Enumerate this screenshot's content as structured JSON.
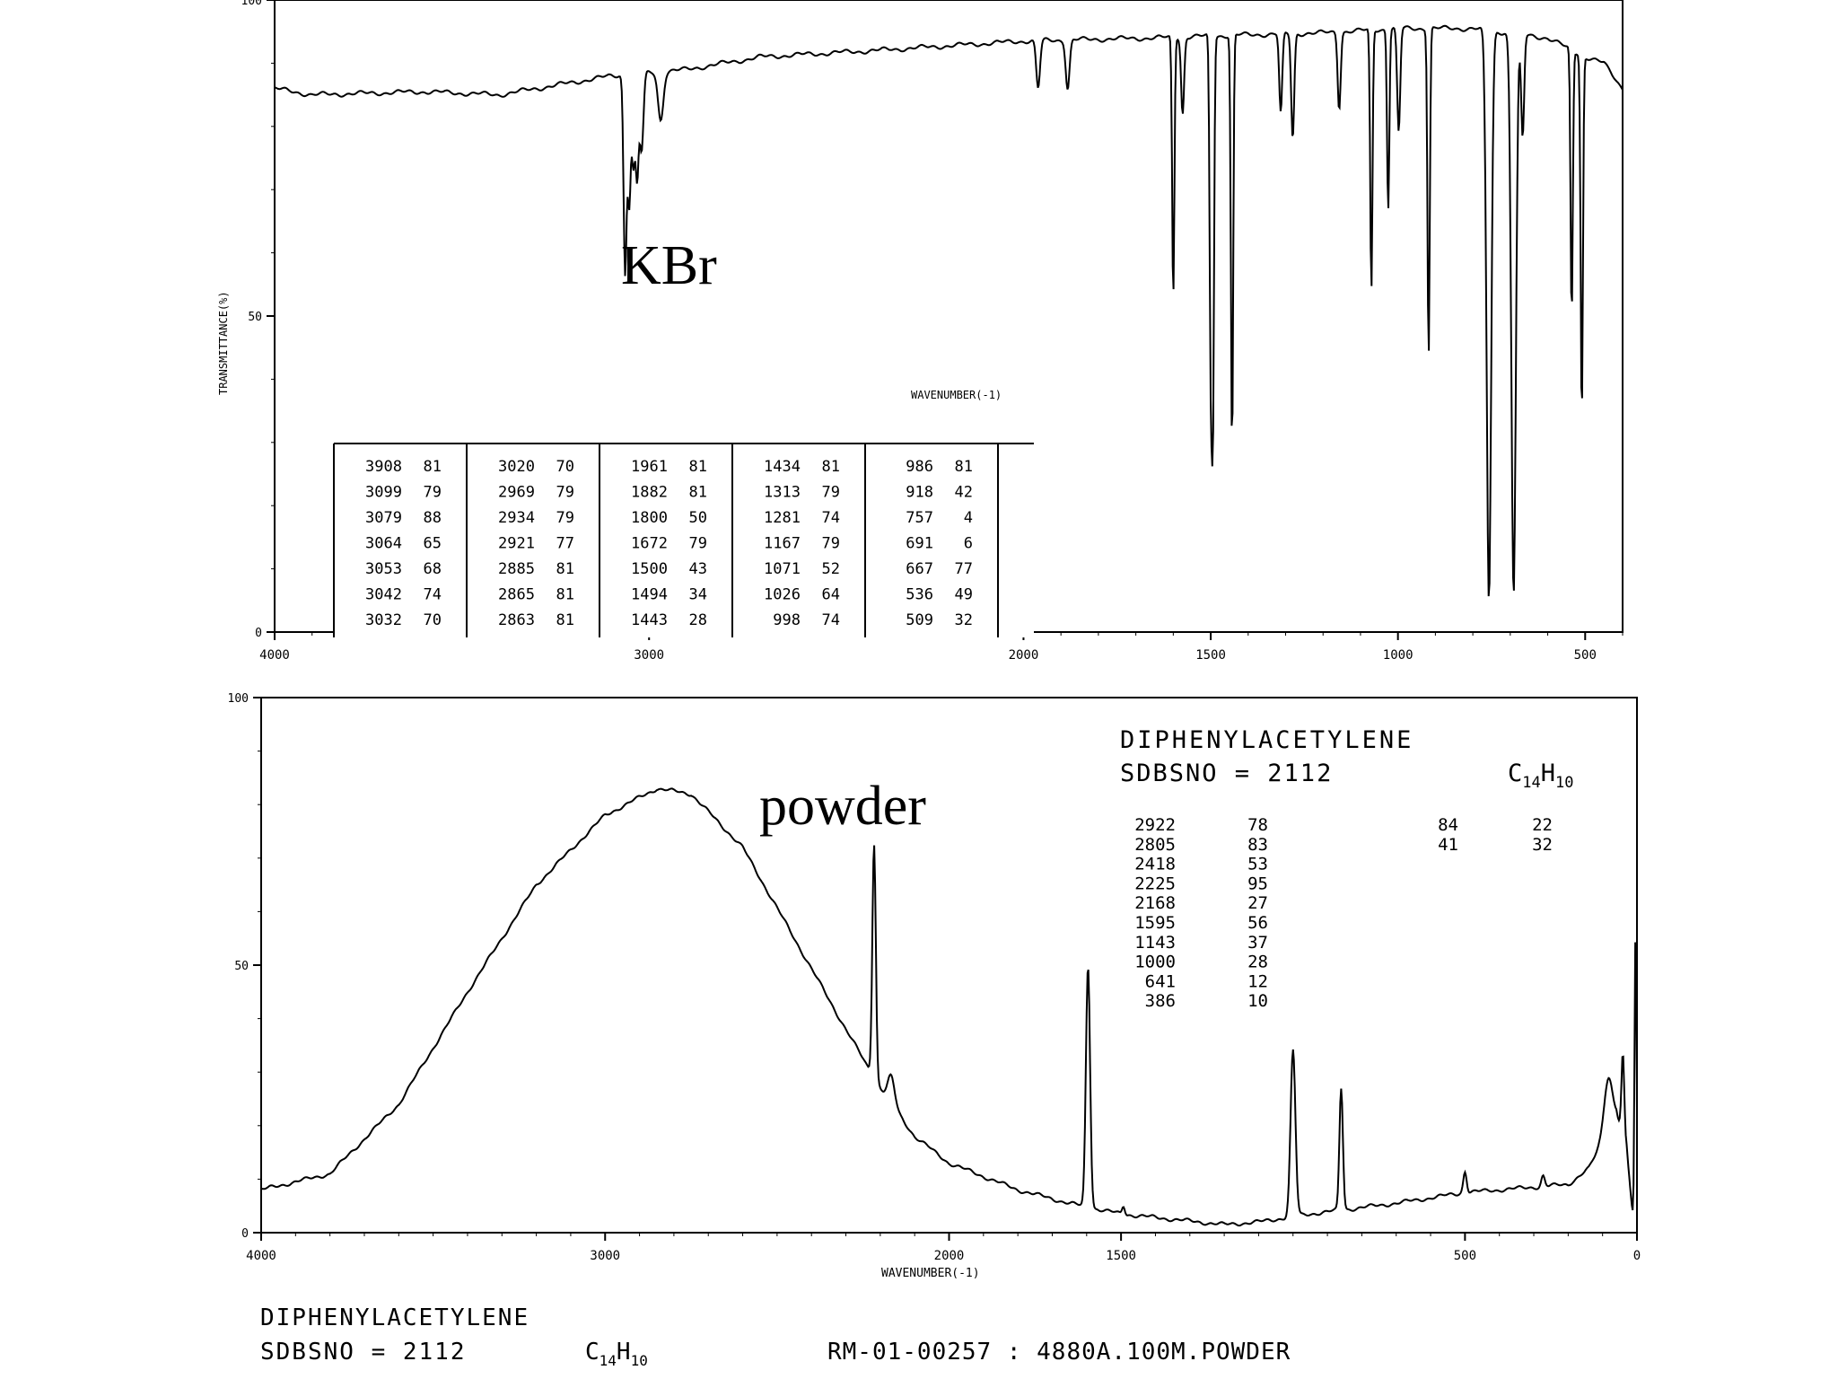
{
  "charts": [
    {
      "id": "ir",
      "type": "line",
      "label": "KBr",
      "xlabel": "WAVENUMBER(-1)",
      "ylabel": "TRANSMITTANCE(%)",
      "xlim": [
        4000,
        400
      ],
      "ylim": [
        0,
        100
      ],
      "x_ticks": [
        {
          "v": 4000,
          "t": "4000"
        },
        {
          "v": 3000,
          "t": "3000"
        },
        {
          "v": 2000,
          "t": "2000"
        },
        {
          "v": 1500,
          "t": "1500"
        },
        {
          "v": 1000,
          "t": "1000"
        },
        {
          "v": 500,
          "t": "500"
        }
      ],
      "y_ticks": [
        {
          "v": 0,
          "t": "0"
        },
        {
          "v": 50,
          "t": "50"
        },
        {
          "v": 100,
          "t": "100"
        }
      ],
      "baseline": [
        [
          4000,
          86
        ],
        [
          3900,
          85
        ],
        [
          3600,
          85.5
        ],
        [
          3400,
          85
        ],
        [
          3150,
          87.5
        ],
        [
          3100,
          88
        ],
        [
          2900,
          89
        ],
        [
          2700,
          91
        ],
        [
          2400,
          92
        ],
        [
          2000,
          93.5
        ],
        [
          1800,
          93.8
        ],
        [
          1650,
          94
        ],
        [
          1400,
          94.5
        ],
        [
          1200,
          94.8
        ],
        [
          1000,
          95.5
        ],
        [
          800,
          95.5
        ],
        [
          600,
          94
        ],
        [
          500,
          91
        ],
        [
          450,
          90
        ],
        [
          400,
          86
        ]
      ],
      "peak_table": [
        [
          [
            3908,
            81
          ],
          [
            3099,
            79
          ],
          [
            3079,
            88
          ],
          [
            3064,
            65
          ],
          [
            3053,
            68
          ],
          [
            3042,
            74
          ],
          [
            3032,
            70
          ]
        ],
        [
          [
            3020,
            70
          ],
          [
            2969,
            79
          ],
          [
            2934,
            79
          ],
          [
            2921,
            77
          ],
          [
            2885,
            81
          ],
          [
            2865,
            81
          ],
          [
            2863,
            81
          ]
        ],
        [
          [
            1961,
            81
          ],
          [
            1882,
            81
          ],
          [
            1800,
            50
          ],
          [
            1672,
            79
          ],
          [
            1500,
            43
          ],
          [
            1494,
            34
          ],
          [
            1443,
            28
          ]
        ],
        [
          [
            1434,
            81
          ],
          [
            1313,
            79
          ],
          [
            1281,
            74
          ],
          [
            1167,
            79
          ],
          [
            1071,
            52
          ],
          [
            1026,
            64
          ],
          [
            998,
            74
          ]
        ],
        [
          [
            986,
            81
          ],
          [
            918,
            42
          ],
          [
            757,
            4
          ],
          [
            691,
            6
          ],
          [
            667,
            77
          ],
          [
            536,
            49
          ],
          [
            509,
            32
          ]
        ]
      ],
      "peaks": [
        {
          "x": 3064,
          "y": 57,
          "w": 4
        },
        {
          "x": 3053,
          "y": 68,
          "w": 4
        },
        {
          "x": 3042,
          "y": 74,
          "w": 4
        },
        {
          "x": 3032,
          "y": 72,
          "w": 4
        },
        {
          "x": 3020,
          "y": 76,
          "w": 5
        },
        {
          "x": 2969,
          "y": 81,
          "w": 7
        },
        {
          "x": 1961,
          "y": 86,
          "w": 5
        },
        {
          "x": 1882,
          "y": 86,
          "w": 5
        },
        {
          "x": 1600,
          "y": 53,
          "w": 3
        },
        {
          "x": 1575,
          "y": 82,
          "w": 4
        },
        {
          "x": 1500,
          "y": 43,
          "w": 3
        },
        {
          "x": 1494,
          "y": 36,
          "w": 3
        },
        {
          "x": 1443,
          "y": 29,
          "w": 3
        },
        {
          "x": 1313,
          "y": 82,
          "w": 4
        },
        {
          "x": 1281,
          "y": 78,
          "w": 4
        },
        {
          "x": 1157,
          "y": 83,
          "w": 4
        },
        {
          "x": 1071,
          "y": 54,
          "w": 3
        },
        {
          "x": 1026,
          "y": 67,
          "w": 3
        },
        {
          "x": 998,
          "y": 79,
          "w": 4
        },
        {
          "x": 918,
          "y": 44,
          "w": 3
        },
        {
          "x": 757,
          "y": 5,
          "w": 6
        },
        {
          "x": 691,
          "y": 6,
          "w": 6
        },
        {
          "x": 667,
          "y": 78,
          "w": 4
        },
        {
          "x": 536,
          "y": 50,
          "w": 3
        },
        {
          "x": 509,
          "y": 34,
          "w": 3
        }
      ]
    },
    {
      "id": "raman",
      "type": "line",
      "label": "powder",
      "xlabel": "WAVENUMBER(-1)",
      "xlim": [
        4000,
        0
      ],
      "ylim": [
        0,
        100
      ],
      "x_ticks": [
        {
          "v": 4000,
          "t": "4000"
        },
        {
          "v": 3000,
          "t": "3000"
        },
        {
          "v": 2000,
          "t": "2000"
        },
        {
          "v": 1500,
          "t": "1500"
        },
        {
          "v": 500,
          "t": "500"
        },
        {
          "v": 0,
          "t": "0"
        }
      ],
      "y_ticks": [
        {
          "v": 0,
          "t": "0"
        },
        {
          "v": 50,
          "t": "50"
        },
        {
          "v": 100,
          "t": "100"
        }
      ],
      "baseline": [
        [
          4000,
          8
        ],
        [
          3800,
          11
        ],
        [
          3600,
          24
        ],
        [
          3400,
          45
        ],
        [
          3200,
          65
        ],
        [
          3000,
          78
        ],
        [
          2850,
          83
        ],
        [
          2750,
          82
        ],
        [
          2600,
          72
        ],
        [
          2450,
          55
        ],
        [
          2300,
          38
        ],
        [
          2200,
          27
        ],
        [
          2100,
          18
        ],
        [
          2000,
          13
        ],
        [
          1800,
          8
        ],
        [
          1650,
          5.5
        ],
        [
          1500,
          3.5
        ],
        [
          1200,
          1.5
        ],
        [
          1100,
          2
        ],
        [
          950,
          3.5
        ],
        [
          700,
          5.5
        ],
        [
          500,
          7.5
        ],
        [
          300,
          8.5
        ],
        [
          200,
          9
        ],
        [
          140,
          12
        ],
        [
          100,
          17
        ],
        [
          60,
          22
        ],
        [
          30,
          16
        ],
        [
          10,
          1
        ],
        [
          0,
          0
        ]
      ],
      "peaks": [
        {
          "x": 2218,
          "y": 73,
          "w": 5
        },
        {
          "x": 2168,
          "y": 5,
          "w": 10
        },
        {
          "x": 1596,
          "y": 50,
          "w": 6
        },
        {
          "x": 1493,
          "y": 5,
          "w": 4
        },
        {
          "x": 1000,
          "y": 34,
          "w": 7
        },
        {
          "x": 860,
          "y": 27,
          "w": 5
        },
        {
          "x": 500,
          "y": 4,
          "w": 5
        },
        {
          "x": 273,
          "y": 2,
          "w": 5
        },
        {
          "x": 84,
          "y": 10,
          "w": 12
        },
        {
          "x": 41,
          "y": 15,
          "w": 4
        },
        {
          "x": 4,
          "y": 57,
          "w": 3
        }
      ],
      "title": "DIPHENYLACETYLENE",
      "sdbs": "SDBSNO = 2112",
      "formula_main": "C",
      "formula_sub1": "14",
      "formula_h": "H",
      "formula_sub2": "10",
      "peak_table": [
        [
          [
            2922,
            78
          ],
          [
            2805,
            83
          ],
          [
            2418,
            53
          ],
          [
            2225,
            95
          ],
          [
            2168,
            27
          ],
          [
            1595,
            56
          ],
          [
            1143,
            37
          ],
          [
            1000,
            28
          ],
          [
            641,
            12
          ],
          [
            386,
            10
          ]
        ],
        [
          [
            84,
            22
          ],
          [
            41,
            32
          ]
        ]
      ]
    }
  ],
  "footer": {
    "title": "DIPHENYLACETYLENE",
    "sdbs": "SDBSNO = 2112",
    "formula_main": "C",
    "formula_sub1": "14",
    "formula_h": "H",
    "formula_sub2": "10",
    "code": "RM-01-00257 : 4880A.100M.POWDER"
  }
}
